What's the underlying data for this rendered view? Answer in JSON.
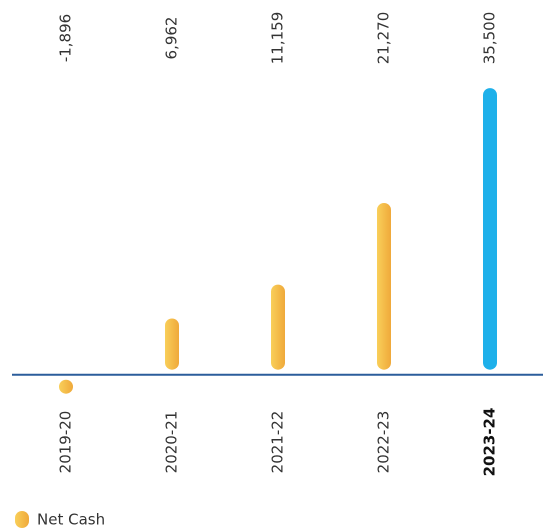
{
  "chart_data": {
    "type": "bar",
    "categories": [
      "2019-20",
      "2020-21",
      "2021-22",
      "2022-23",
      "2023-24"
    ],
    "series": [
      {
        "name": "Net Cash",
        "color": "#f6b93b",
        "colors": [
          "#f6b93b",
          "#f6b93b",
          "#f6b93b",
          "#f6b93b",
          "#1eb0ea"
        ],
        "values": [
          -1896,
          6962,
          11159,
          21270,
          35500
        ],
        "value_labels": [
          "-1,896",
          "6,962",
          "11,159",
          "21,270",
          "35,500"
        ]
      }
    ],
    "ylim": [
      -4000,
      37000
    ]
  }
}
